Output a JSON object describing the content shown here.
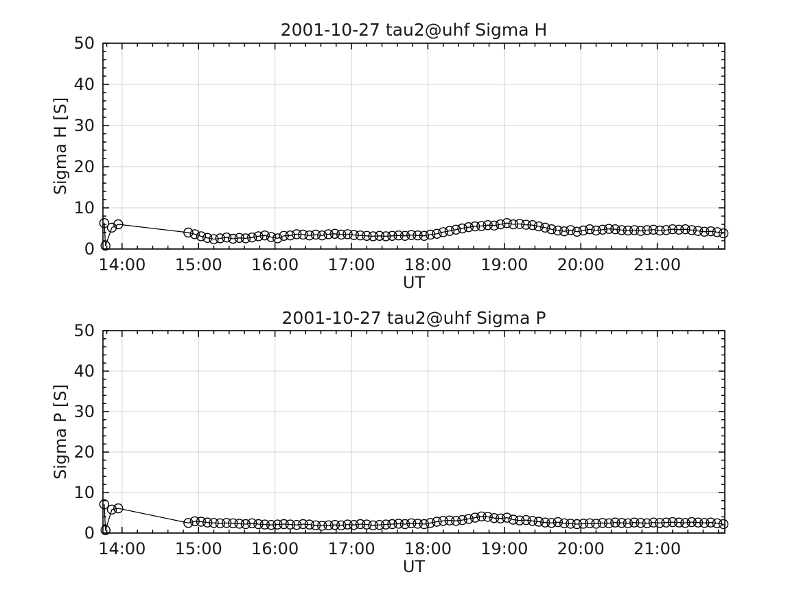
{
  "figure": {
    "background": "#ffffff",
    "axis_color": "#000000",
    "grid_color": "#d9d9d9",
    "line_color": "#000000",
    "marker_color": "#000000"
  },
  "chart_data": [
    {
      "type": "line",
      "title": "2001-10-27  tau2@uhf Sigma H",
      "xlabel": "UT",
      "ylabel": "Sigma H [S]",
      "ylim": [
        0,
        50
      ],
      "xlim": [
        "13:45",
        "21:53"
      ],
      "yticks": [
        0,
        10,
        20,
        30,
        40,
        50
      ],
      "xticks": [
        "14:00",
        "15:00",
        "16:00",
        "17:00",
        "18:00",
        "19:00",
        "20:00",
        "21:00"
      ],
      "x_minor_minutes": 12,
      "y_minor_step": 2,
      "grid": true,
      "legend": "none",
      "marker": "circle",
      "series": [
        {
          "name": "Sigma H",
          "points": [
            [
              "13:46",
              6.3
            ],
            [
              "13:47",
              0.8
            ],
            [
              "13:52",
              5.2
            ],
            [
              "13:57",
              6.0
            ],
            [
              "14:52",
              4.0
            ],
            [
              "14:57",
              3.6
            ],
            [
              "15:02",
              3.1
            ],
            [
              "15:07",
              2.7
            ],
            [
              "15:12",
              2.4
            ],
            [
              "15:17",
              2.6
            ],
            [
              "15:22",
              2.8
            ],
            [
              "15:27",
              2.5
            ],
            [
              "15:32",
              2.7
            ],
            [
              "15:37",
              2.6
            ],
            [
              "15:42",
              2.8
            ],
            [
              "15:47",
              3.1
            ],
            [
              "15:52",
              3.3
            ],
            [
              "15:57",
              2.9
            ],
            [
              "16:02",
              2.6
            ],
            [
              "16:07",
              3.2
            ],
            [
              "16:12",
              3.3
            ],
            [
              "16:17",
              3.6
            ],
            [
              "16:22",
              3.5
            ],
            [
              "16:27",
              3.3
            ],
            [
              "16:32",
              3.5
            ],
            [
              "16:37",
              3.3
            ],
            [
              "16:42",
              3.6
            ],
            [
              "16:47",
              3.7
            ],
            [
              "16:52",
              3.5
            ],
            [
              "16:57",
              3.6
            ],
            [
              "17:02",
              3.4
            ],
            [
              "17:07",
              3.3
            ],
            [
              "17:12",
              3.2
            ],
            [
              "17:17",
              3.1
            ],
            [
              "17:22",
              3.2
            ],
            [
              "17:27",
              3.1
            ],
            [
              "17:32",
              3.2
            ],
            [
              "17:37",
              3.3
            ],
            [
              "17:42",
              3.2
            ],
            [
              "17:47",
              3.4
            ],
            [
              "17:52",
              3.3
            ],
            [
              "17:57",
              3.2
            ],
            [
              "18:02",
              3.5
            ],
            [
              "18:07",
              3.7
            ],
            [
              "18:12",
              4.1
            ],
            [
              "18:17",
              4.4
            ],
            [
              "18:22",
              4.7
            ],
            [
              "18:27",
              5.0
            ],
            [
              "18:32",
              5.3
            ],
            [
              "18:37",
              5.5
            ],
            [
              "18:42",
              5.6
            ],
            [
              "18:47",
              5.8
            ],
            [
              "18:52",
              5.7
            ],
            [
              "18:57",
              6.0
            ],
            [
              "19:02",
              6.3
            ],
            [
              "19:07",
              6.0
            ],
            [
              "19:12",
              6.1
            ],
            [
              "19:17",
              5.9
            ],
            [
              "19:22",
              5.8
            ],
            [
              "19:27",
              5.5
            ],
            [
              "19:32",
              5.2
            ],
            [
              "19:37",
              4.8
            ],
            [
              "19:42",
              4.5
            ],
            [
              "19:47",
              4.3
            ],
            [
              "19:52",
              4.6
            ],
            [
              "19:57",
              4.2
            ],
            [
              "20:02",
              4.5
            ],
            [
              "20:07",
              4.8
            ],
            [
              "20:12",
              4.5
            ],
            [
              "20:17",
              4.7
            ],
            [
              "20:22",
              4.9
            ],
            [
              "20:27",
              4.8
            ],
            [
              "20:32",
              4.6
            ],
            [
              "20:37",
              4.5
            ],
            [
              "20:42",
              4.6
            ],
            [
              "20:47",
              4.4
            ],
            [
              "20:52",
              4.6
            ],
            [
              "20:57",
              4.7
            ],
            [
              "21:02",
              4.5
            ],
            [
              "21:07",
              4.6
            ],
            [
              "21:12",
              4.8
            ],
            [
              "21:17",
              4.7
            ],
            [
              "21:22",
              4.8
            ],
            [
              "21:27",
              4.6
            ],
            [
              "21:32",
              4.4
            ],
            [
              "21:37",
              4.2
            ],
            [
              "21:42",
              4.3
            ],
            [
              "21:47",
              4.1
            ],
            [
              "21:52",
              3.8
            ]
          ]
        }
      ]
    },
    {
      "type": "line",
      "title": "2001-10-27  tau2@uhf Sigma P",
      "xlabel": "UT",
      "ylabel": "Sigma P [S]",
      "ylim": [
        0,
        50
      ],
      "xlim": [
        "13:45",
        "21:53"
      ],
      "yticks": [
        0,
        10,
        20,
        30,
        40,
        50
      ],
      "xticks": [
        "14:00",
        "15:00",
        "16:00",
        "17:00",
        "18:00",
        "19:00",
        "20:00",
        "21:00"
      ],
      "x_minor_minutes": 12,
      "y_minor_step": 2,
      "grid": true,
      "legend": "none",
      "marker": "circle",
      "series": [
        {
          "name": "Sigma P",
          "points": [
            [
              "13:46",
              7.1
            ],
            [
              "13:47",
              0.7
            ],
            [
              "13:52",
              5.8
            ],
            [
              "13:57",
              6.1
            ],
            [
              "14:52",
              2.5
            ],
            [
              "14:57",
              2.9
            ],
            [
              "15:02",
              2.8
            ],
            [
              "15:07",
              2.6
            ],
            [
              "15:12",
              2.5
            ],
            [
              "15:17",
              2.4
            ],
            [
              "15:22",
              2.5
            ],
            [
              "15:27",
              2.4
            ],
            [
              "15:32",
              2.3
            ],
            [
              "15:37",
              2.2
            ],
            [
              "15:42",
              2.4
            ],
            [
              "15:47",
              2.2
            ],
            [
              "15:52",
              2.1
            ],
            [
              "15:57",
              2.0
            ],
            [
              "16:02",
              2.1
            ],
            [
              "16:07",
              2.2
            ],
            [
              "16:12",
              2.1
            ],
            [
              "16:17",
              2.0
            ],
            [
              "16:22",
              2.2
            ],
            [
              "16:27",
              2.1
            ],
            [
              "16:32",
              1.9
            ],
            [
              "16:37",
              1.8
            ],
            [
              "16:42",
              1.9
            ],
            [
              "16:47",
              2.0
            ],
            [
              "16:52",
              1.9
            ],
            [
              "16:57",
              2.1
            ],
            [
              "17:02",
              2.0
            ],
            [
              "17:07",
              2.2
            ],
            [
              "17:12",
              2.1
            ],
            [
              "17:17",
              1.9
            ],
            [
              "17:22",
              2.0
            ],
            [
              "17:27",
              2.1
            ],
            [
              "17:32",
              2.2
            ],
            [
              "17:37",
              2.3
            ],
            [
              "17:42",
              2.2
            ],
            [
              "17:47",
              2.4
            ],
            [
              "17:52",
              2.3
            ],
            [
              "17:57",
              2.2
            ],
            [
              "18:02",
              2.5
            ],
            [
              "18:07",
              2.8
            ],
            [
              "18:12",
              3.0
            ],
            [
              "18:17",
              3.1
            ],
            [
              "18:22",
              3.0
            ],
            [
              "18:27",
              3.2
            ],
            [
              "18:32",
              3.5
            ],
            [
              "18:37",
              3.8
            ],
            [
              "18:42",
              4.1
            ],
            [
              "18:47",
              4.0
            ],
            [
              "18:52",
              3.7
            ],
            [
              "18:57",
              3.6
            ],
            [
              "19:02",
              3.8
            ],
            [
              "19:07",
              3.3
            ],
            [
              "19:12",
              3.1
            ],
            [
              "19:17",
              3.2
            ],
            [
              "19:22",
              3.0
            ],
            [
              "19:27",
              2.8
            ],
            [
              "19:32",
              2.6
            ],
            [
              "19:37",
              2.5
            ],
            [
              "19:42",
              2.7
            ],
            [
              "19:47",
              2.4
            ],
            [
              "19:52",
              2.3
            ],
            [
              "19:57",
              2.2
            ],
            [
              "20:02",
              2.3
            ],
            [
              "20:07",
              2.4
            ],
            [
              "20:12",
              2.3
            ],
            [
              "20:17",
              2.5
            ],
            [
              "20:22",
              2.4
            ],
            [
              "20:27",
              2.6
            ],
            [
              "20:32",
              2.5
            ],
            [
              "20:37",
              2.4
            ],
            [
              "20:42",
              2.6
            ],
            [
              "20:47",
              2.5
            ],
            [
              "20:52",
              2.4
            ],
            [
              "20:57",
              2.6
            ],
            [
              "21:02",
              2.5
            ],
            [
              "21:07",
              2.6
            ],
            [
              "21:12",
              2.7
            ],
            [
              "21:17",
              2.6
            ],
            [
              "21:22",
              2.5
            ],
            [
              "21:27",
              2.7
            ],
            [
              "21:32",
              2.6
            ],
            [
              "21:37",
              2.5
            ],
            [
              "21:42",
              2.6
            ],
            [
              "21:47",
              2.4
            ],
            [
              "21:52",
              2.2
            ]
          ]
        }
      ]
    }
  ]
}
